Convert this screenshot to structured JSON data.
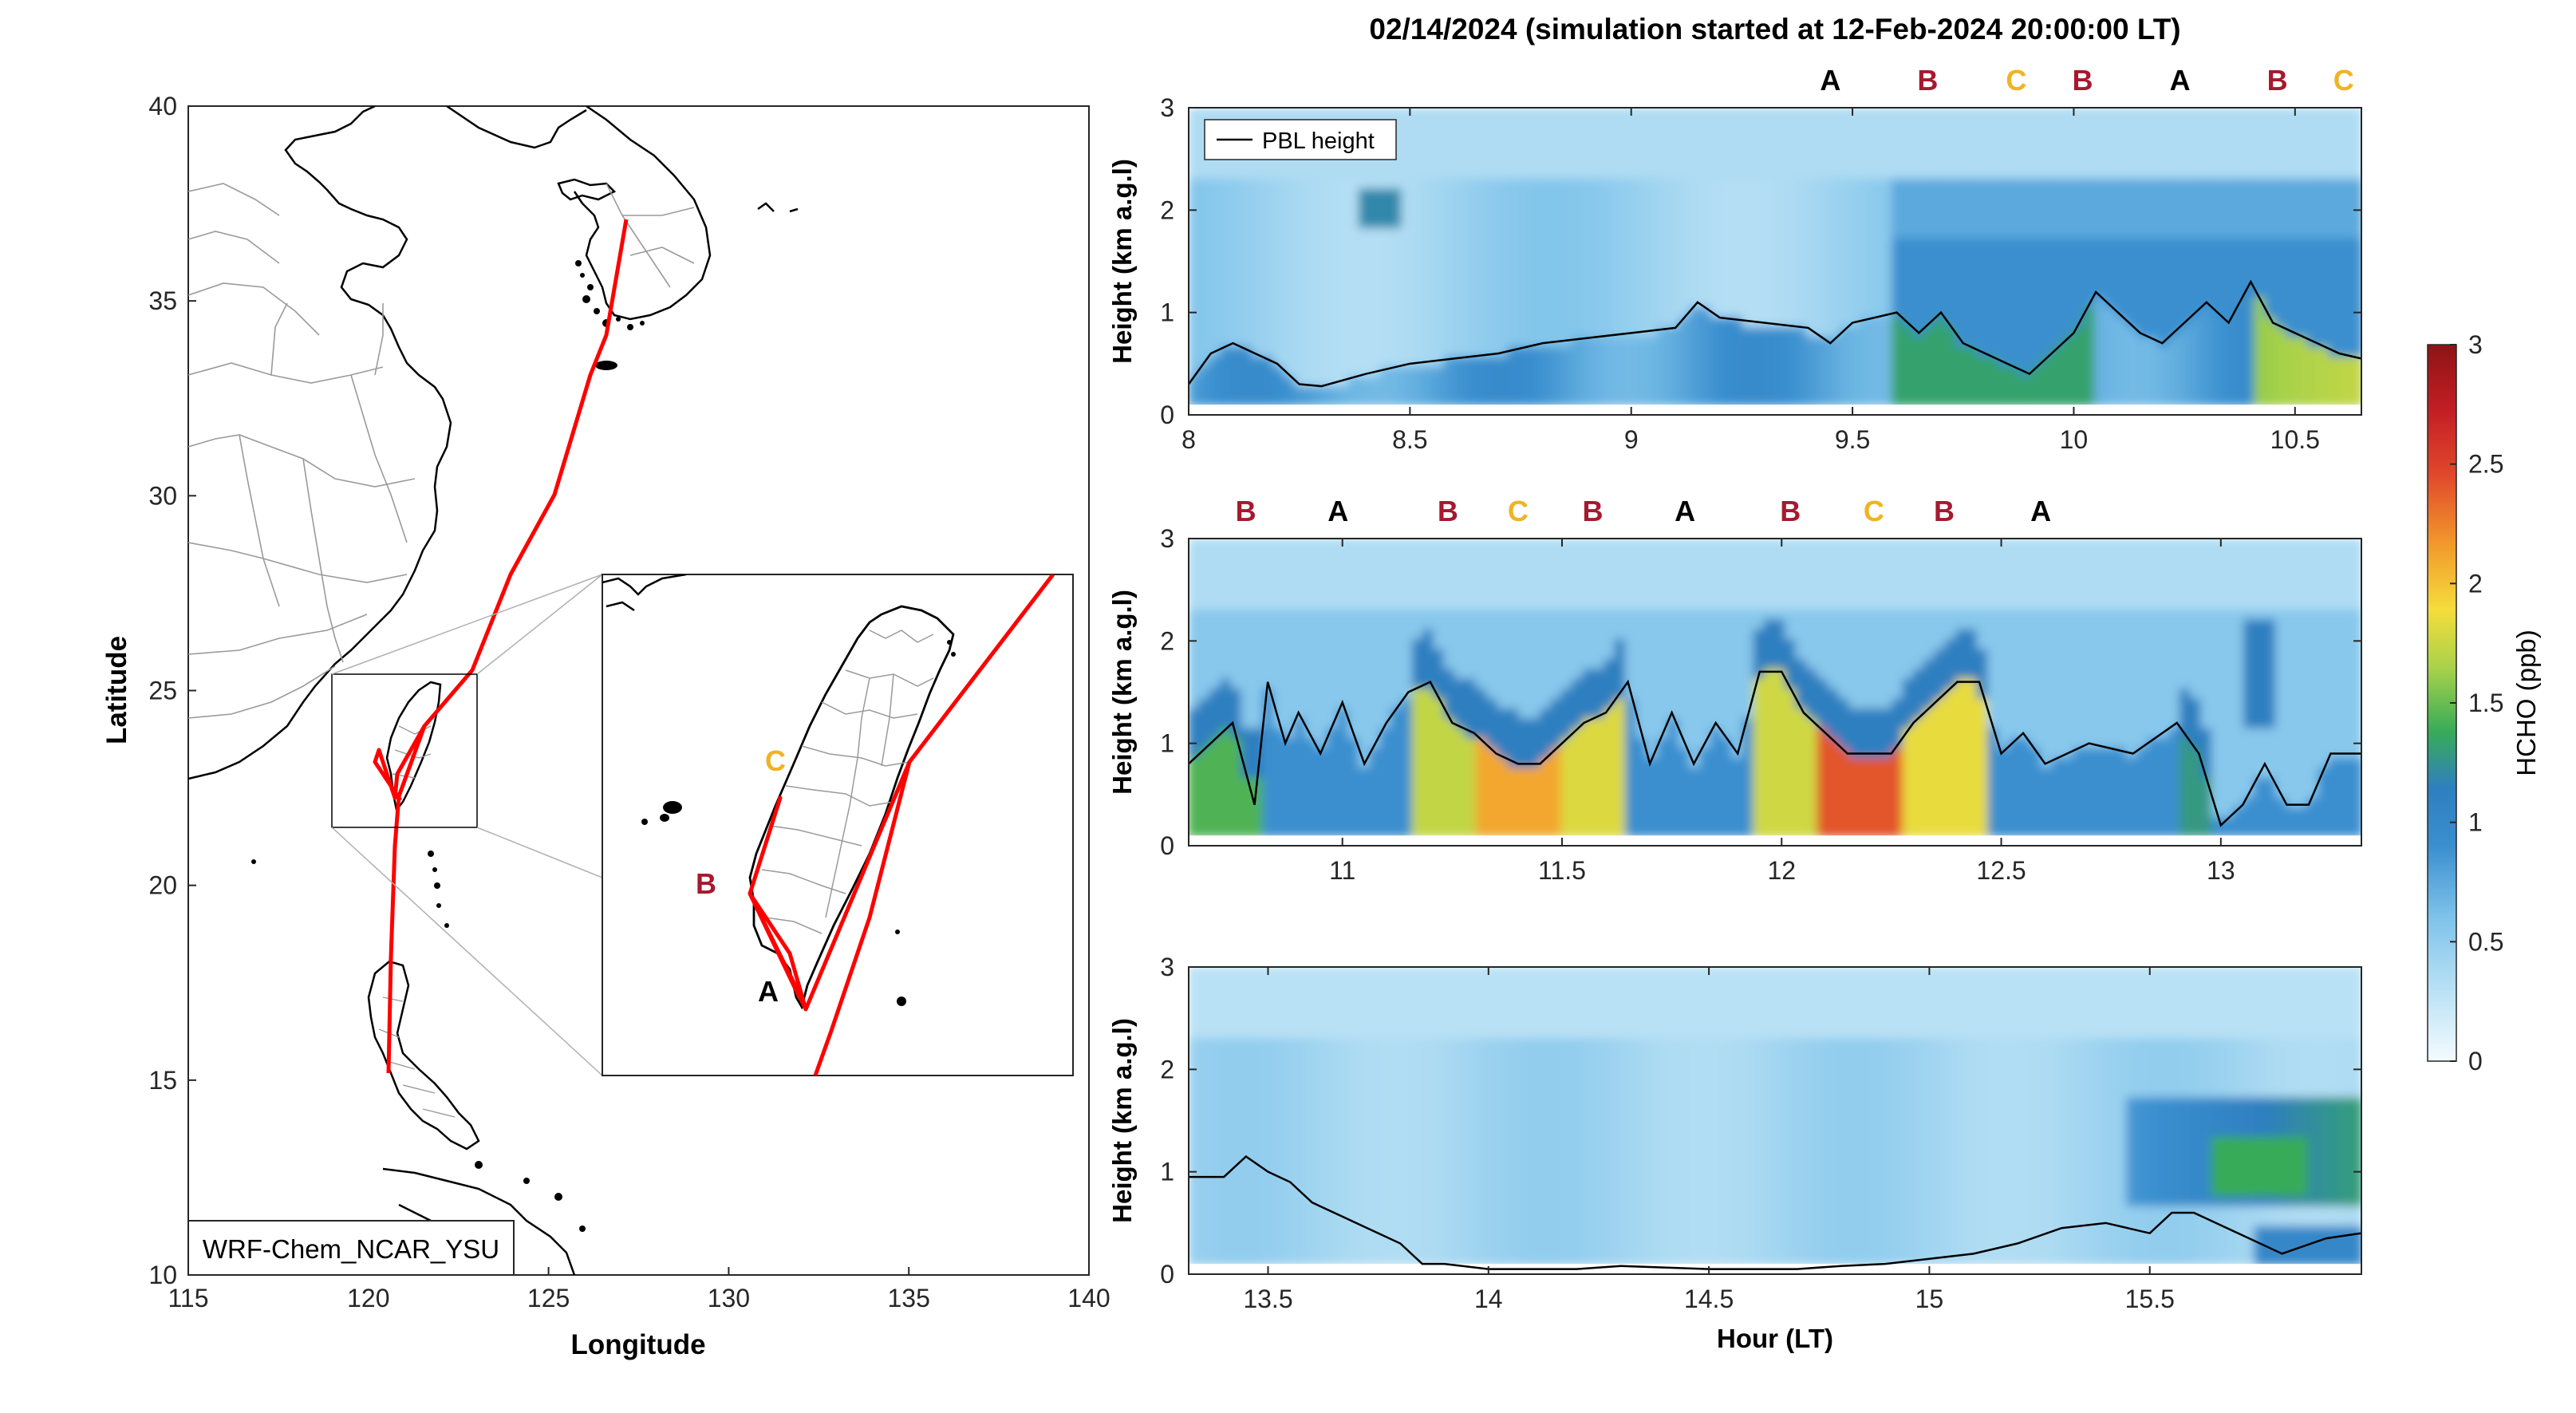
{
  "suptitle": "02/14/2024 (simulation started at 12-Feb-2024 20:00:00 LT)",
  "map": {
    "xlabel": "Longitude",
    "ylabel": "Latitude",
    "xticks": [
      115,
      120,
      125,
      130,
      135,
      140
    ],
    "yticks": [
      10,
      15,
      20,
      25,
      30,
      35,
      40
    ],
    "xlim": [
      115,
      140
    ],
    "ylim": [
      10,
      40
    ],
    "model_label": "WRF-Chem_NCAR_YSU",
    "inset_markers": [
      {
        "label": "C",
        "color": "#f0b323"
      },
      {
        "label": "B",
        "color": "#a6192e"
      },
      {
        "label": "A",
        "color": "#000000"
      }
    ],
    "track_color": "#ff0000"
  },
  "panels": [
    {
      "ylabel": "Height (km a.g.l)",
      "xlim": [
        8.0,
        10.65
      ],
      "xticks": [
        8,
        8.5,
        9,
        9.5,
        10,
        10.5
      ],
      "xticklabels": [
        "8",
        "8.5",
        "9",
        "9.5",
        "10",
        "10.5"
      ],
      "yticks": [
        0,
        1,
        2,
        3
      ],
      "legend": "PBL height",
      "sites": [
        {
          "label": "A",
          "color": "#000000",
          "x": 9.45
        },
        {
          "label": "B",
          "color": "#a6192e",
          "x": 9.67
        },
        {
          "label": "C",
          "color": "#f0b323",
          "x": 9.87
        },
        {
          "label": "B",
          "color": "#a6192e",
          "x": 10.02
        },
        {
          "label": "A",
          "color": "#000000",
          "x": 10.24
        },
        {
          "label": "B",
          "color": "#a6192e",
          "x": 10.46
        },
        {
          "label": "C",
          "color": "#f0b323",
          "x": 10.61
        }
      ]
    },
    {
      "ylabel": "Height (km a.g.l)",
      "xlim": [
        10.65,
        13.32
      ],
      "xticks": [
        11,
        11.5,
        12,
        12.5,
        13
      ],
      "xticklabels": [
        "11",
        "11.5",
        "12",
        "12.5",
        "13"
      ],
      "yticks": [
        0,
        1,
        2,
        3
      ],
      "sites": [
        {
          "label": "B",
          "color": "#a6192e",
          "x": 10.78
        },
        {
          "label": "A",
          "color": "#000000",
          "x": 10.99
        },
        {
          "label": "B",
          "color": "#a6192e",
          "x": 11.24
        },
        {
          "label": "C",
          "color": "#f0b323",
          "x": 11.4
        },
        {
          "label": "B",
          "color": "#a6192e",
          "x": 11.57
        },
        {
          "label": "A",
          "color": "#000000",
          "x": 11.78
        },
        {
          "label": "B",
          "color": "#a6192e",
          "x": 12.02
        },
        {
          "label": "C",
          "color": "#f0b323",
          "x": 12.21
        },
        {
          "label": "B",
          "color": "#a6192e",
          "x": 12.37
        },
        {
          "label": "A",
          "color": "#000000",
          "x": 12.59
        }
      ]
    },
    {
      "ylabel": "Height (km a.g.l)",
      "xlabel": "Hour (LT)",
      "xlim": [
        13.32,
        15.98
      ],
      "xticks": [
        13.5,
        14,
        14.5,
        15,
        15.5
      ],
      "xticklabels": [
        "13.5",
        "14",
        "14.5",
        "15",
        "15.5"
      ],
      "yticks": [
        0,
        1,
        2,
        3
      ],
      "sites": []
    }
  ],
  "colorbar": {
    "label": "HCHO (ppb)",
    "ticks": [
      0,
      0.5,
      1,
      1.5,
      2,
      2.5,
      3
    ],
    "ticklabels": [
      "0",
      "0.5",
      "1",
      "1.5",
      "2",
      "2.5",
      "3"
    ],
    "range": [
      0,
      3
    ]
  },
  "chart_data": [
    {
      "type": "heatmap",
      "title": "02/14/2024 (simulation started at 12-Feb-2024 20:00:00 LT)",
      "xlabel": "",
      "ylabel": "Height (km a.g.l)",
      "xlim": [
        8.0,
        10.65
      ],
      "ylim": [
        0,
        3
      ],
      "colorbar": "HCHO (ppb)",
      "series": [
        {
          "name": "PBL height",
          "x": [
            8.0,
            8.05,
            8.1,
            8.15,
            8.2,
            8.25,
            8.3,
            8.4,
            8.5,
            8.6,
            8.7,
            8.8,
            8.9,
            9.0,
            9.1,
            9.15,
            9.2,
            9.3,
            9.4,
            9.45,
            9.5,
            9.6,
            9.65,
            9.7,
            9.75,
            9.8,
            9.85,
            9.9,
            9.95,
            10.0,
            10.05,
            10.1,
            10.15,
            10.2,
            10.25,
            10.3,
            10.35,
            10.4,
            10.45,
            10.5,
            10.55,
            10.6,
            10.65
          ],
          "y": [
            0.3,
            0.6,
            0.7,
            0.6,
            0.5,
            0.3,
            0.28,
            0.4,
            0.5,
            0.55,
            0.6,
            0.7,
            0.75,
            0.8,
            0.85,
            1.1,
            0.95,
            0.9,
            0.85,
            0.7,
            0.9,
            1.0,
            0.8,
            1.0,
            0.7,
            0.6,
            0.5,
            0.4,
            0.6,
            0.8,
            1.2,
            1.0,
            0.8,
            0.7,
            0.9,
            1.1,
            0.9,
            1.3,
            0.9,
            0.8,
            0.7,
            0.6,
            0.55
          ]
        }
      ]
    },
    {
      "type": "heatmap",
      "xlabel": "",
      "ylabel": "Height (km a.g.l)",
      "xlim": [
        10.65,
        13.32
      ],
      "ylim": [
        0,
        3
      ],
      "colorbar": "HCHO (ppb)",
      "series": [
        {
          "name": "PBL height",
          "x": [
            10.65,
            10.7,
            10.75,
            10.8,
            10.83,
            10.87,
            10.9,
            10.95,
            11.0,
            11.05,
            11.1,
            11.15,
            11.2,
            11.25,
            11.3,
            11.35,
            11.4,
            11.45,
            11.5,
            11.55,
            11.6,
            11.65,
            11.7,
            11.75,
            11.8,
            11.85,
            11.9,
            11.95,
            12.0,
            12.05,
            12.1,
            12.15,
            12.2,
            12.25,
            12.3,
            12.35,
            12.4,
            12.45,
            12.5,
            12.55,
            12.6,
            12.7,
            12.8,
            12.9,
            12.95,
            13.0,
            13.05,
            13.1,
            13.15,
            13.2,
            13.25,
            13.32
          ],
          "y": [
            0.8,
            1.0,
            1.2,
            0.4,
            1.6,
            1.0,
            1.3,
            0.9,
            1.4,
            0.8,
            1.2,
            1.5,
            1.6,
            1.2,
            1.1,
            0.9,
            0.8,
            0.8,
            1.0,
            1.2,
            1.3,
            1.6,
            0.8,
            1.3,
            0.8,
            1.2,
            0.9,
            1.7,
            1.7,
            1.3,
            1.1,
            0.9,
            0.9,
            0.9,
            1.2,
            1.4,
            1.6,
            1.6,
            0.9,
            1.1,
            0.8,
            1.0,
            0.9,
            1.2,
            0.9,
            0.2,
            0.4,
            0.8,
            0.4,
            0.4,
            0.9,
            0.9
          ]
        }
      ]
    },
    {
      "type": "heatmap",
      "xlabel": "Hour (LT)",
      "ylabel": "Height (km a.g.l)",
      "xlim": [
        13.32,
        15.98
      ],
      "ylim": [
        0,
        3
      ],
      "colorbar": "HCHO (ppb)",
      "series": [
        {
          "name": "PBL height",
          "x": [
            13.32,
            13.4,
            13.45,
            13.5,
            13.55,
            13.6,
            13.7,
            13.8,
            13.85,
            13.9,
            14.0,
            14.1,
            14.2,
            14.3,
            14.5,
            14.7,
            14.8,
            14.9,
            15.0,
            15.1,
            15.2,
            15.3,
            15.4,
            15.5,
            15.55,
            15.6,
            15.7,
            15.8,
            15.9,
            15.98
          ],
          "y": [
            0.95,
            0.95,
            1.15,
            1.0,
            0.9,
            0.7,
            0.5,
            0.3,
            0.1,
            0.1,
            0.05,
            0.05,
            0.05,
            0.08,
            0.05,
            0.05,
            0.08,
            0.1,
            0.15,
            0.2,
            0.3,
            0.45,
            0.5,
            0.4,
            0.6,
            0.6,
            0.4,
            0.2,
            0.35,
            0.4
          ]
        }
      ]
    }
  ]
}
